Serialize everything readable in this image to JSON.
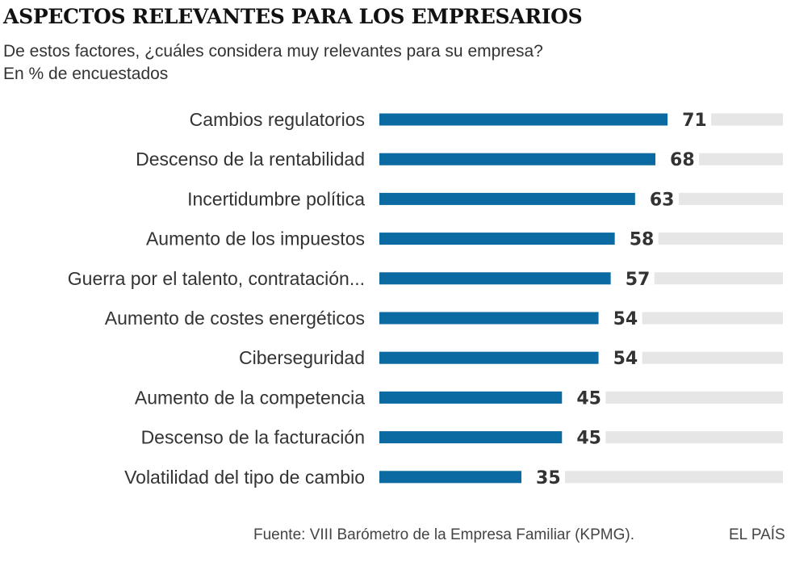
{
  "header": {
    "title": "ASPECTOS RELEVANTES PARA LOS EMPRESARIOS",
    "subtitle_line1": "De estos factores, ¿cuáles considera muy relevantes para su empresa?",
    "subtitle_line2": "En % de encuestados"
  },
  "chart_data": {
    "type": "bar",
    "orientation": "horizontal",
    "title": "ASPECTOS RELEVANTES PARA LOS EMPRESARIOS",
    "subtitle": "De estos factores, ¿cuáles considera muy relevantes para su empresa?",
    "ylabel": "En % de encuestados",
    "xlim": [
      0,
      100
    ],
    "grid": false,
    "categories": [
      "Cambios regulatorios",
      "Descenso de la rentabilidad",
      "Incertidumbre política",
      "Aumento de los impuestos",
      "Guerra por el talento, contratación...",
      "Aumento de costes energéticos",
      "Ciberseguridad",
      "Aumento de la competencia",
      "Descenso de la facturación",
      "Volatilidad del tipo de cambio"
    ],
    "values": [
      71,
      68,
      63,
      58,
      57,
      54,
      54,
      45,
      45,
      35
    ]
  },
  "colors": {
    "bar": "#0a6aa1",
    "track": "#e6e6e6",
    "text": "#333333"
  },
  "footer": {
    "source": "Fuente: VIII Barómetro de la Empresa Familiar (KPMG).",
    "brand": "EL PAÍS"
  }
}
